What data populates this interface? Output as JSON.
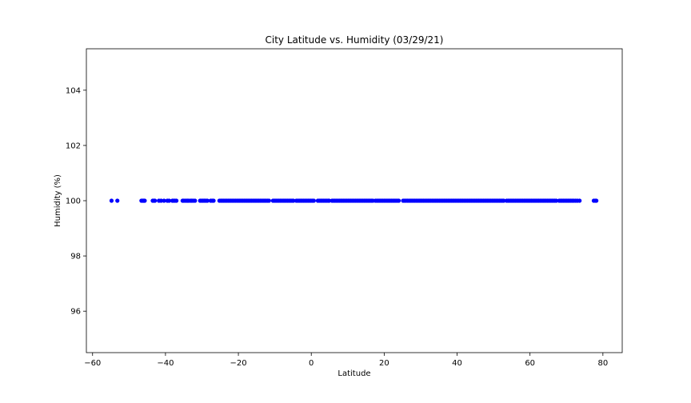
{
  "chart_data": {
    "type": "scatter",
    "title": "City Latitude vs. Humidity (03/29/21)",
    "xlabel": "Latitude",
    "ylabel": "Humidity (%)",
    "xlim": [
      -61.7,
      85.3
    ],
    "ylim": [
      94.5,
      105.5
    ],
    "x_ticks": [
      -60,
      -40,
      -20,
      0,
      20,
      40,
      60,
      80
    ],
    "x_tick_labels": [
      "−60",
      "−40",
      "−20",
      "0",
      "20",
      "40",
      "60",
      "80"
    ],
    "y_ticks": [
      96,
      98,
      100,
      102,
      104
    ],
    "y_tick_labels": [
      "96",
      "98",
      "100",
      "102",
      "104"
    ],
    "grid": false,
    "marker_color": "#0000ff",
    "points": {
      "x": [
        -54.8,
        -53.2,
        -46.6,
        -46.3,
        -46.1,
        -45.9,
        -45.7,
        -43.5,
        -43.2,
        -42.9,
        -41.8,
        -41.2,
        -40.4,
        -39.5,
        -39.0,
        -38.1,
        -37.8,
        -37.4,
        -37.0,
        -35.3,
        -35.0,
        -34.6,
        -34.2,
        -33.9,
        -33.6,
        -33.1,
        -32.8,
        -32.4,
        -31.9,
        -30.5,
        -30.1,
        -29.7,
        -29.3,
        -28.9,
        -28.5,
        -27.6,
        -27.2,
        -26.8,
        -25.2,
        -24.8,
        -24.4,
        -24.0,
        -23.6,
        -23.2,
        -22.8,
        -22.4,
        -22.0,
        -21.6,
        -21.2,
        -20.8,
        -20.4,
        -20.0,
        -19.6,
        -19.2,
        -18.8,
        -18.4,
        -18.0,
        -17.6,
        -17.2,
        -16.8,
        -16.4,
        -16.0,
        -15.6,
        -15.2,
        -14.8,
        -14.4,
        -14.0,
        -13.6,
        -13.2,
        -12.8,
        -12.4,
        -12.0,
        -11.6,
        -10.5,
        -10.1,
        -9.7,
        -9.3,
        -8.9,
        -8.5,
        -8.1,
        -7.7,
        -7.3,
        -6.9,
        -6.5,
        -6.1,
        -5.7,
        -5.3,
        -4.9,
        -4.1,
        -3.7,
        -3.3,
        -2.9,
        -2.5,
        -2.1,
        -1.7,
        -1.3,
        -0.9,
        -0.5,
        -0.1,
        0.3,
        0.7,
        1.8,
        2.2,
        2.6,
        3.0,
        3.4,
        3.8,
        4.2,
        4.6,
        4.9,
        5.7,
        6.1,
        6.5,
        6.9,
        7.3,
        7.7,
        8.1,
        8.5,
        8.9,
        9.3,
        9.7,
        10.1,
        10.5,
        10.9,
        11.3,
        11.7,
        12.1,
        12.5,
        12.9,
        13.3,
        13.7,
        14.1,
        14.5,
        14.9,
        15.3,
        15.7,
        16.1,
        16.5,
        16.9,
        17.6,
        18.0,
        18.4,
        18.8,
        19.2,
        19.6,
        20.0,
        20.4,
        20.8,
        21.2,
        21.6,
        22.0,
        22.4,
        22.8,
        23.2,
        23.6,
        24.0,
        25.2,
        25.6,
        26.0,
        26.4,
        26.8,
        27.2,
        27.6,
        28.0,
        28.4,
        28.8,
        29.2,
        29.6,
        30.0,
        30.4,
        30.8,
        31.2,
        31.6,
        32.0,
        32.4,
        32.8,
        33.2,
        33.6,
        34.0,
        34.4,
        34.8,
        35.2,
        35.6,
        36.0,
        36.4,
        36.8,
        37.2,
        37.6,
        38.0,
        38.4,
        38.8,
        39.2,
        39.6,
        40.0,
        40.4,
        40.8,
        41.2,
        41.6,
        42.0,
        42.4,
        42.8,
        43.2,
        43.6,
        44.0,
        44.4,
        44.8,
        45.2,
        45.6,
        46.0,
        46.4,
        46.8,
        47.2,
        47.6,
        48.0,
        48.4,
        48.8,
        49.2,
        49.6,
        50.0,
        50.4,
        50.8,
        51.2,
        51.6,
        52.0,
        52.4,
        52.8,
        53.6,
        54.0,
        54.4,
        54.8,
        55.2,
        55.6,
        56.0,
        56.4,
        56.8,
        57.2,
        57.6,
        58.0,
        58.4,
        58.8,
        59.2,
        59.6,
        60.0,
        60.4,
        60.8,
        61.2,
        61.6,
        62.0,
        62.4,
        62.8,
        63.2,
        63.6,
        64.0,
        64.4,
        64.8,
        65.2,
        65.6,
        66.0,
        66.4,
        66.8,
        67.2,
        68.0,
        68.4,
        68.8,
        69.2,
        69.6,
        70.0,
        70.4,
        70.8,
        71.2,
        71.6,
        72.0,
        72.5,
        73.0,
        73.6,
        77.5,
        77.9,
        78.2
      ],
      "y": 100
    }
  }
}
